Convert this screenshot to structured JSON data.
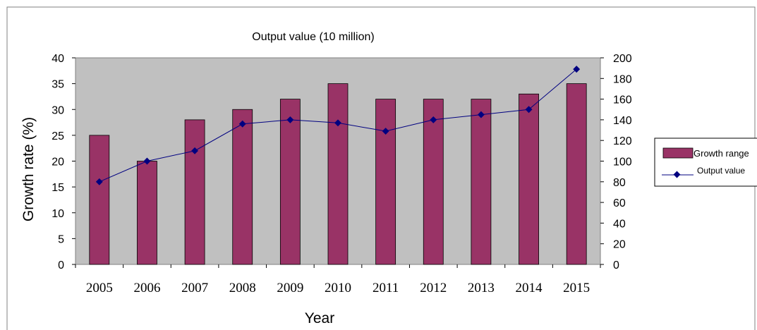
{
  "chart_data": {
    "type": "bar+line",
    "title": "Output value (10 million)",
    "xlabel": "Year",
    "ylabel": "Growth rate (%)",
    "y2label": "",
    "categories": [
      "2005",
      "2006",
      "2007",
      "2008",
      "2009",
      "2010",
      "2011",
      "2012",
      "2013",
      "2014",
      "2015"
    ],
    "ylim": [
      0,
      40
    ],
    "y_ticks": [
      "0",
      "5",
      "10",
      "15",
      "20",
      "25",
      "30",
      "35",
      "40"
    ],
    "y2lim": [
      0,
      200
    ],
    "y2_ticks": [
      "0",
      "20",
      "40",
      "60",
      "80",
      "100",
      "120",
      "140",
      "160",
      "180",
      "200"
    ],
    "series": [
      {
        "name": "Growth range",
        "type": "bar",
        "axis": "left",
        "color": "#993366",
        "values": [
          25,
          20,
          28,
          30,
          32,
          35,
          32,
          32,
          32,
          33,
          35
        ]
      },
      {
        "name": "Output value",
        "type": "line",
        "axis": "right",
        "color": "#000080",
        "values": [
          80,
          100,
          110,
          136,
          140,
          137,
          129,
          140,
          145,
          150,
          189
        ]
      }
    ],
    "plot_background": "#c0c0c0",
    "grid": false,
    "legend_position": "right"
  }
}
